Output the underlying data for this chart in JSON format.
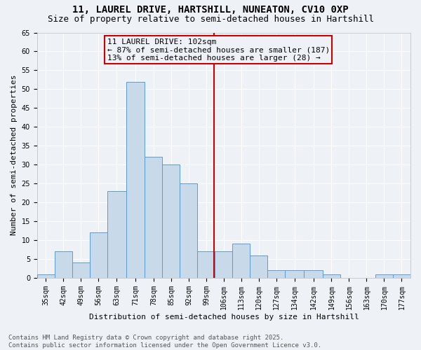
{
  "title1": "11, LAUREL DRIVE, HARTSHILL, NUNEATON, CV10 0XP",
  "title2": "Size of property relative to semi-detached houses in Hartshill",
  "xlabel": "Distribution of semi-detached houses by size in Hartshill",
  "ylabel": "Number of semi-detached properties",
  "bin_labels": [
    "35sqm",
    "42sqm",
    "49sqm",
    "56sqm",
    "63sqm",
    "71sqm",
    "78sqm",
    "85sqm",
    "92sqm",
    "99sqm",
    "106sqm",
    "113sqm",
    "120sqm",
    "127sqm",
    "134sqm",
    "142sqm",
    "149sqm",
    "156sqm",
    "163sqm",
    "170sqm",
    "177sqm"
  ],
  "bin_values": [
    1,
    7,
    4,
    12,
    23,
    52,
    32,
    30,
    25,
    7,
    7,
    9,
    6,
    2,
    2,
    2,
    1,
    0,
    0,
    1,
    1
  ],
  "bin_edges": [
    31.5,
    38.5,
    45.5,
    52.5,
    59.5,
    67.0,
    74.5,
    81.5,
    88.5,
    95.5,
    102.5,
    109.5,
    116.5,
    123.5,
    130.5,
    138.0,
    145.5,
    152.5,
    159.5,
    166.5,
    173.5,
    180.5
  ],
  "bar_color": "#c8d9ea",
  "bar_edge_color": "#5b9bd5",
  "property_size": 102,
  "vline_color": "#cc0000",
  "annotation_line1": "11 LAUREL DRIVE: 102sqm",
  "annotation_line2": "← 87% of semi-detached houses are smaller (187)",
  "annotation_line3": "13% of semi-detached houses are larger (28) →",
  "ylim": [
    0,
    65
  ],
  "yticks": [
    0,
    5,
    10,
    15,
    20,
    25,
    30,
    35,
    40,
    45,
    50,
    55,
    60,
    65
  ],
  "footer_text": "Contains HM Land Registry data © Crown copyright and database right 2025.\nContains public sector information licensed under the Open Government Licence v3.0.",
  "bg_color": "#eef2f7",
  "grid_color": "#ffffff",
  "title1_fontsize": 10,
  "title2_fontsize": 9,
  "axis_fontsize": 8,
  "tick_fontsize": 7,
  "annotation_fontsize": 8,
  "footer_fontsize": 6.5
}
